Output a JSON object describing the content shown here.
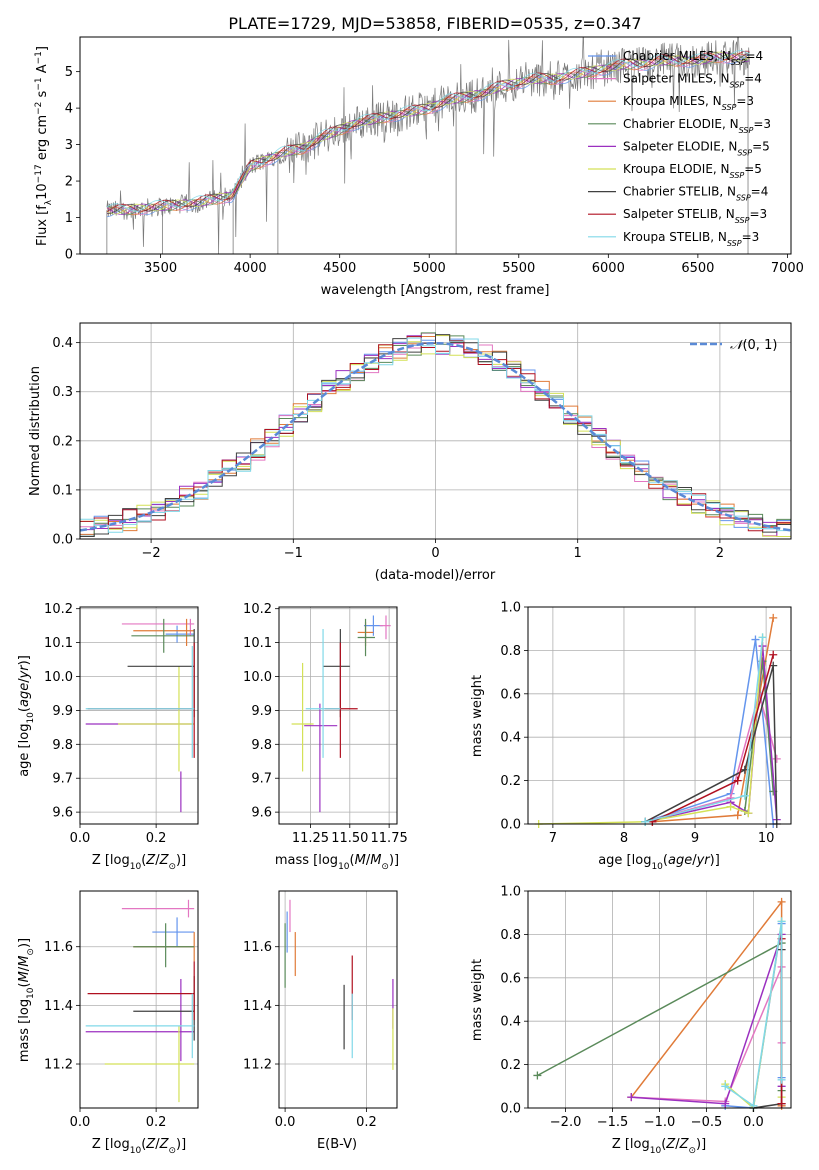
{
  "figure_title": "PLATE=1729, MJD=53858, FIBERID=0535, z=0.347",
  "colors": {
    "Chabrier MILES": "#6495ed",
    "Salpeter MILES": "#e377c2",
    "Kroupa MILES": "#e07b39",
    "Chabrier ELODIE": "#5a8a5a",
    "Salpeter ELODIE": "#9b30c0",
    "Kroupa ELODIE": "#d4e157",
    "Chabrier STELIB": "#404040",
    "Salpeter STELIB": "#b01020",
    "Kroupa STELIB": "#80d8e8"
  },
  "chart_data": [
    {
      "type": "line",
      "title": "PLATE=1729, MJD=53858, FIBERID=0535, z=0.347",
      "xlabel": "wavelength [Angstrom, rest frame]",
      "ylabel": "Flux [f_λ 10^-17 erg cm^-2 s^-1 A^-1]",
      "xlim": [
        3050,
        7020
      ],
      "ylim": [
        0,
        5.95
      ],
      "xticks": [
        3500,
        4000,
        4500,
        5000,
        5500,
        6000,
        6500,
        7000
      ],
      "yticks": [
        0,
        1,
        2,
        3,
        4,
        5
      ],
      "legend_position": "top-right",
      "legend": [
        {
          "label": "Chabrier MILES, N_SSP=4",
          "base": "Chabrier MILES, N",
          "sub": "SSP",
          "tail": "=4",
          "series": "Chabrier MILES"
        },
        {
          "label": "Salpeter MILES, N_SSP=4",
          "base": "Salpeter MILES, N",
          "sub": "SSP",
          "tail": "=4",
          "series": "Salpeter MILES"
        },
        {
          "label": "Kroupa MILES, N_SSP=3",
          "base": "Kroupa MILES, N",
          "sub": "SSP",
          "tail": "=3",
          "series": "Kroupa MILES"
        },
        {
          "label": "Chabrier ELODIE, N_SSP=3",
          "base": "Chabrier ELODIE, N",
          "sub": "SSP",
          "tail": "=3",
          "series": "Chabrier ELODIE"
        },
        {
          "label": "Salpeter ELODIE, N_SSP=5",
          "base": "Salpeter ELODIE, N",
          "sub": "SSP",
          "tail": "=5",
          "series": "Salpeter ELODIE"
        },
        {
          "label": "Kroupa ELODIE, N_SSP=5",
          "base": "Kroupa ELODIE, N",
          "sub": "SSP",
          "tail": "=5",
          "series": "Kroupa ELODIE"
        },
        {
          "label": "Chabrier STELIB, N_SSP=4",
          "base": "Chabrier STELIB, N",
          "sub": "SSP",
          "tail": "=4",
          "series": "Chabrier STELIB"
        },
        {
          "label": "Salpeter STELIB, N_SSP=3",
          "base": "Salpeter STELIB, N",
          "sub": "SSP",
          "tail": "=3",
          "series": "Salpeter STELIB"
        },
        {
          "label": "Kroupa STELIB, N_SSP=3",
          "base": "Kroupa STELIB, N",
          "sub": "SSP",
          "tail": "=3",
          "series": "Kroupa STELIB"
        }
      ],
      "spectrum_trend": {
        "x": [
          3200,
          3300,
          3400,
          3500,
          3600,
          3700,
          3800,
          3900,
          4000,
          4100,
          4200,
          4300,
          4400,
          4500,
          4600,
          4700,
          4800,
          4900,
          5000,
          5100,
          5200,
          5300,
          5400,
          5500,
          5600,
          5700,
          5800,
          5900,
          6000,
          6100,
          6200,
          6300,
          6400,
          6500,
          6600,
          6700,
          6800
        ],
        "y": [
          1.2,
          1.2,
          1.25,
          1.3,
          1.35,
          1.4,
          1.5,
          1.6,
          2.4,
          2.6,
          2.8,
          2.9,
          3.2,
          3.4,
          3.6,
          3.7,
          3.8,
          3.9,
          4.0,
          4.2,
          4.3,
          4.4,
          4.6,
          4.7,
          4.8,
          4.8,
          4.9,
          5.0,
          5.1,
          5.2,
          5.2,
          5.3,
          5.3,
          5.3,
          5.4,
          5.4,
          5.4
        ]
      }
    },
    {
      "type": "line",
      "xlabel": "(data-model)/error",
      "ylabel": "Normed distribution",
      "xlim": [
        -2.5,
        2.5
      ],
      "ylim": [
        0,
        0.44
      ],
      "xticks": [
        -2,
        -1,
        0,
        1,
        2
      ],
      "yticks": [
        0.0,
        0.1,
        0.2,
        0.3,
        0.4
      ],
      "legend_position": "top-right",
      "legend_label": "N(0,1)",
      "grid": true
    },
    {
      "type": "scatter",
      "xlabel": "Z [log10(Z/Z_sun)]",
      "ylabel": "age [log10(age/yr)]",
      "xlim": [
        0.0,
        0.31
      ],
      "ylim": [
        9.565,
        10.205
      ],
      "xticks": [
        0.0,
        0.2
      ],
      "yticks": [
        9.6,
        9.7,
        9.8,
        9.9,
        10.0,
        10.1,
        10.2
      ],
      "grid": true,
      "points": [
        {
          "series": "Chabrier MILES",
          "x": 0.255,
          "y": 10.125,
          "xerr": [
            0.225,
            0.3
          ],
          "yerr": [
            10.1,
            10.15
          ]
        },
        {
          "series": "Salpeter MILES",
          "x": 0.29,
          "y": 10.155,
          "xerr": [
            0.11,
            0.3
          ],
          "yerr": [
            10.12,
            10.17
          ]
        },
        {
          "series": "Kroupa MILES",
          "x": 0.28,
          "y": 10.135,
          "xerr": [
            0.14,
            0.3
          ],
          "yerr": [
            10.09,
            10.17
          ]
        },
        {
          "series": "Chabrier ELODIE",
          "x": 0.22,
          "y": 10.12,
          "xerr": [
            0.135,
            0.3
          ],
          "yerr": [
            10.07,
            10.17
          ]
        },
        {
          "series": "Salpeter ELODIE",
          "x": 0.265,
          "y": 9.86,
          "xerr": [
            0.015,
            0.3
          ],
          "yerr": [
            9.6,
            9.72
          ]
        },
        {
          "series": "Kroupa ELODIE",
          "x": 0.26,
          "y": 9.86,
          "xerr": [
            0.1,
            0.3
          ],
          "yerr": [
            9.72,
            10.03
          ]
        },
        {
          "series": "Chabrier STELIB",
          "x": 0.3,
          "y": 10.03,
          "xerr": [
            0.125,
            0.3
          ],
          "yerr": [
            9.88,
            10.14
          ]
        },
        {
          "series": "Salpeter STELIB",
          "x": 0.3,
          "y": 9.905,
          "xerr": [
            0.02,
            0.3
          ],
          "yerr": [
            9.76,
            10.1
          ]
        },
        {
          "series": "Kroupa STELIB",
          "x": 0.295,
          "y": 9.905,
          "xerr": [
            0.015,
            0.3
          ],
          "yerr": [
            9.76,
            10.09
          ]
        }
      ]
    },
    {
      "type": "scatter",
      "xlabel": "mass [log10(M/M_sun)]",
      "xlim": [
        11.05,
        11.8
      ],
      "ylim": [
        9.565,
        10.205
      ],
      "xticks": [
        11.25,
        11.5,
        11.75
      ],
      "yticks": [
        9.6,
        9.7,
        9.8,
        9.9,
        10.0,
        10.1,
        10.2
      ],
      "grid": true,
      "points": [
        {
          "series": "Chabrier MILES",
          "x": 11.65,
          "y": 10.15,
          "xerr": [
            11.59,
            11.71
          ],
          "yerr": [
            10.12,
            10.18
          ]
        },
        {
          "series": "Salpeter MILES",
          "x": 11.73,
          "y": 10.15,
          "xerr": [
            11.69,
            11.76
          ],
          "yerr": [
            10.11,
            10.18
          ]
        },
        {
          "series": "Kroupa MILES",
          "x": 11.6,
          "y": 10.13,
          "xerr": [
            11.55,
            11.65
          ],
          "yerr": [
            10.09,
            10.16
          ]
        },
        {
          "series": "Chabrier ELODIE",
          "x": 11.6,
          "y": 10.115,
          "xerr": [
            11.55,
            11.66
          ],
          "yerr": [
            10.06,
            10.17
          ]
        },
        {
          "series": "Salpeter ELODIE",
          "x": 11.31,
          "y": 9.855,
          "xerr": [
            11.21,
            11.42
          ],
          "yerr": [
            9.6,
            9.92
          ]
        },
        {
          "series": "Kroupa ELODIE",
          "x": 11.2,
          "y": 9.86,
          "xerr": [
            11.13,
            11.27
          ],
          "yerr": [
            9.72,
            10.04
          ]
        },
        {
          "series": "Chabrier STELIB",
          "x": 11.44,
          "y": 10.03,
          "xerr": [
            11.33,
            11.5
          ],
          "yerr": [
            9.88,
            10.14
          ]
        },
        {
          "series": "Salpeter STELIB",
          "x": 11.44,
          "y": 9.905,
          "xerr": [
            11.34,
            11.55
          ],
          "yerr": [
            9.76,
            10.1
          ]
        },
        {
          "series": "Kroupa STELIB",
          "x": 11.33,
          "y": 9.905,
          "xerr": [
            11.22,
            11.44
          ],
          "yerr": [
            9.76,
            10.14
          ]
        }
      ]
    },
    {
      "type": "line",
      "xlabel": "age [log10(age/yr)]",
      "ylabel": "mass weight",
      "xlim": [
        6.65,
        10.35
      ],
      "ylim": [
        0,
        1.0
      ],
      "xticks": [
        7,
        8,
        9,
        10
      ],
      "yticks": [
        0.0,
        0.2,
        0.4,
        0.6,
        0.8,
        1.0
      ],
      "grid": true,
      "series": [
        {
          "name": "Chabrier MILES",
          "x": [
            8.3,
            9.5,
            9.85,
            10.1
          ],
          "y": [
            0.01,
            0.14,
            0.85,
            0.0
          ]
        },
        {
          "name": "Salpeter MILES",
          "x": [
            8.3,
            9.5,
            9.9,
            10.15
          ],
          "y": [
            0.01,
            0.12,
            0.6,
            0.3
          ]
        },
        {
          "name": "Kroupa MILES",
          "x": [
            8.4,
            9.6,
            10.1
          ],
          "y": [
            0.01,
            0.04,
            0.95
          ]
        },
        {
          "name": "Chabrier ELODIE",
          "x": [
            9.7,
            9.95,
            10.1
          ],
          "y": [
            0.06,
            0.75,
            0.15
          ]
        },
        {
          "name": "Salpeter ELODIE",
          "x": [
            8.3,
            9.5,
            9.75,
            9.95,
            10.15
          ],
          "y": [
            0.01,
            0.1,
            0.05,
            0.82,
            0.02
          ]
        },
        {
          "name": "Kroupa ELODIE",
          "x": [
            6.8,
            8.3,
            9.5,
            9.75,
            9.95
          ],
          "y": [
            0.0,
            0.01,
            0.08,
            0.05,
            0.86
          ]
        },
        {
          "name": "Chabrier STELIB",
          "x": [
            8.3,
            9.7,
            10.1,
            10.15
          ],
          "y": [
            0.01,
            0.25,
            0.73,
            0.0
          ]
        },
        {
          "name": "Salpeter STELIB",
          "x": [
            8.4,
            9.6,
            10.1
          ],
          "y": [
            0.01,
            0.2,
            0.78
          ]
        },
        {
          "name": "Kroupa STELIB",
          "x": [
            8.3,
            9.7,
            9.95
          ],
          "y": [
            0.01,
            0.13,
            0.86
          ]
        }
      ]
    },
    {
      "type": "scatter",
      "xlabel": "Z [log10(Z/Z_sun)]",
      "ylabel": "mass [log10(M/M_sun)]",
      "xlim": [
        0.0,
        0.31
      ],
      "ylim": [
        11.05,
        11.79
      ],
      "xticks": [
        0.0,
        0.2
      ],
      "yticks": [
        11.2,
        11.4,
        11.6
      ],
      "grid": true,
      "points": [
        {
          "series": "Chabrier MILES",
          "x": 0.255,
          "y": 11.65,
          "xerr": [
            0.19,
            0.3
          ],
          "yerr": [
            11.6,
            11.7
          ]
        },
        {
          "series": "Salpeter MILES",
          "x": 0.285,
          "y": 11.73,
          "xerr": [
            0.11,
            0.3
          ],
          "yerr": [
            11.7,
            11.76
          ]
        },
        {
          "series": "Kroupa MILES",
          "x": 0.3,
          "y": 11.6,
          "xerr": [
            0.14,
            0.3
          ],
          "yerr": [
            11.55,
            11.65
          ]
        },
        {
          "series": "Chabrier ELODIE",
          "x": 0.225,
          "y": 11.6,
          "xerr": [
            0.14,
            0.3
          ],
          "yerr": [
            11.53,
            11.68
          ]
        },
        {
          "series": "Salpeter ELODIE",
          "x": 0.265,
          "y": 11.31,
          "xerr": [
            0.015,
            0.3
          ],
          "yerr": [
            11.21,
            11.49
          ]
        },
        {
          "series": "Kroupa ELODIE",
          "x": 0.26,
          "y": 11.2,
          "xerr": [
            0.065,
            0.3
          ],
          "yerr": [
            11.07,
            11.33
          ]
        },
        {
          "series": "Chabrier STELIB",
          "x": 0.3,
          "y": 11.38,
          "xerr": [
            0.14,
            0.3
          ],
          "yerr": [
            11.28,
            11.5
          ]
        },
        {
          "series": "Salpeter STELIB",
          "x": 0.3,
          "y": 11.44,
          "xerr": [
            0.02,
            0.3
          ],
          "yerr": [
            11.35,
            11.55
          ]
        },
        {
          "series": "Kroupa STELIB",
          "x": 0.295,
          "y": 11.33,
          "xerr": [
            0.015,
            0.3
          ],
          "yerr": [
            11.22,
            11.44
          ]
        }
      ]
    },
    {
      "type": "scatter",
      "xlabel": "E(B-V)",
      "xlim": [
        -0.015,
        0.275
      ],
      "ylim": [
        11.05,
        11.79
      ],
      "xticks": [
        0.0,
        0.2
      ],
      "yticks": [
        11.2,
        11.4,
        11.6
      ],
      "grid": true,
      "points": [
        {
          "series": "Chabrier MILES",
          "x": 0.005,
          "y": 11.65,
          "yerr": [
            11.58,
            11.72
          ]
        },
        {
          "series": "Salpeter MILES",
          "x": 0.012,
          "y": 11.7,
          "yerr": [
            11.65,
            11.76
          ]
        },
        {
          "series": "Kroupa MILES",
          "x": 0.025,
          "y": 11.58,
          "yerr": [
            11.5,
            11.65
          ]
        },
        {
          "series": "Chabrier ELODIE",
          "x": 0.0,
          "y": 11.57,
          "yerr": [
            11.46,
            11.68
          ]
        },
        {
          "series": "Salpeter ELODIE",
          "x": 0.265,
          "y": 11.4,
          "yerr": [
            11.32,
            11.49
          ]
        },
        {
          "series": "Kroupa ELODIE",
          "x": 0.265,
          "y": 11.26,
          "yerr": [
            11.18,
            11.39
          ]
        },
        {
          "series": "Chabrier STELIB",
          "x": 0.145,
          "y": 11.36,
          "yerr": [
            11.25,
            11.47
          ]
        },
        {
          "series": "Salpeter STELIB",
          "x": 0.165,
          "y": 11.45,
          "yerr": [
            11.35,
            11.57
          ]
        },
        {
          "series": "Kroupa STELIB",
          "x": 0.165,
          "y": 11.33,
          "yerr": [
            11.22,
            11.44
          ]
        }
      ]
    },
    {
      "type": "line",
      "xlabel": "Z [log10(Z/Z_sun)]",
      "ylabel": "mass weight",
      "xlim": [
        -2.4,
        0.4
      ],
      "ylim": [
        0,
        1.0
      ],
      "xticks": [
        -2.0,
        -1.5,
        -1.0,
        -0.5,
        0.0
      ],
      "yticks": [
        0.0,
        0.2,
        0.4,
        0.6,
        0.8,
        1.0
      ],
      "grid": true,
      "series": [
        {
          "name": "Chabrier MILES",
          "x": [
            -0.3,
            0.0,
            0.3,
            0.3
          ],
          "y": [
            0.01,
            0.0,
            0.85,
            0.14
          ]
        },
        {
          "name": "Salpeter MILES",
          "x": [
            -1.3,
            -0.3,
            0.3,
            0.3
          ],
          "y": [
            0.05,
            0.03,
            0.65,
            0.3
          ]
        },
        {
          "name": "Kroupa MILES",
          "x": [
            -1.3,
            0.3,
            0.3
          ],
          "y": [
            0.05,
            0.95,
            0.01
          ]
        },
        {
          "name": "Chabrier ELODIE",
          "x": [
            -2.3,
            0.3,
            0.3
          ],
          "y": [
            0.15,
            0.76,
            0.08
          ]
        },
        {
          "name": "Salpeter ELODIE",
          "x": [
            -1.3,
            -0.3,
            0.3,
            0.3
          ],
          "y": [
            0.05,
            0.02,
            0.8,
            0.1
          ]
        },
        {
          "name": "Kroupa ELODIE",
          "x": [
            -0.3,
            0.0,
            0.3,
            0.3
          ],
          "y": [
            0.11,
            0.0,
            0.86,
            0.05
          ]
        },
        {
          "name": "Chabrier STELIB",
          "x": [
            0.0,
            0.3,
            0.3
          ],
          "y": [
            0.0,
            0.02,
            0.73
          ]
        },
        {
          "name": "Salpeter STELIB",
          "x": [
            0.3,
            0.3
          ],
          "y": [
            0.78,
            0.02
          ]
        },
        {
          "name": "Kroupa STELIB",
          "x": [
            -0.3,
            0.0,
            0.3,
            0.3
          ],
          "y": [
            0.1,
            0.01,
            0.86,
            0.13
          ]
        }
      ]
    }
  ]
}
